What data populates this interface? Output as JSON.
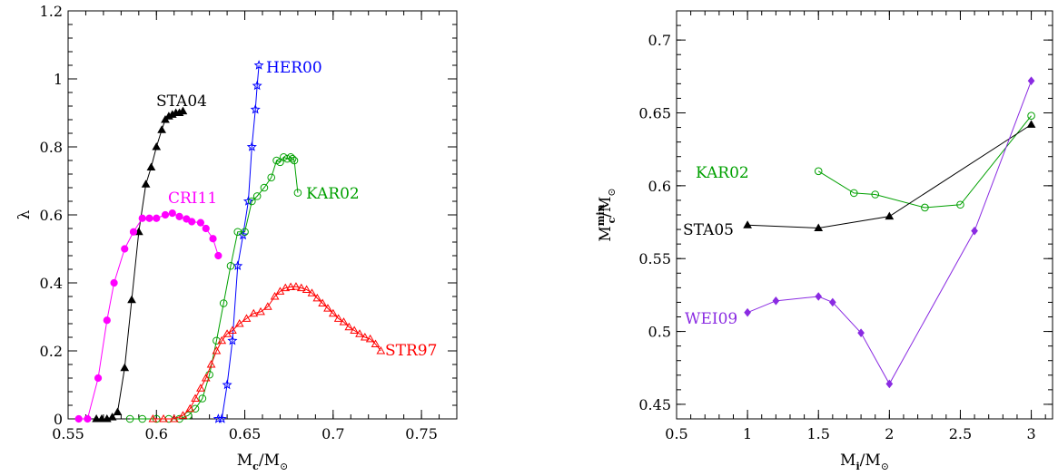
{
  "chart_data": [
    {
      "type": "line",
      "title": "",
      "xlabel": "M_c/M_⊙",
      "ylabel": "λ",
      "xlim": [
        0.55,
        0.77
      ],
      "ylim": [
        0,
        1.2
      ],
      "x_ticks": [
        "0.55",
        "0.6",
        "0.65",
        "0.7",
        "0.75"
      ],
      "y_ticks": [
        "0",
        "0.2",
        "0.4",
        "0.6",
        "0.8",
        "1",
        "1.2"
      ],
      "grid": false,
      "legend": "none (inline series labels)",
      "series": [
        {
          "name": "STA04",
          "color": "#000000",
          "marker": "filled-triangle",
          "x": [
            0.566,
            0.569,
            0.572,
            0.575,
            0.578,
            0.582,
            0.586,
            0.59,
            0.594,
            0.597,
            0.6,
            0.603,
            0.605,
            0.607,
            0.609,
            0.611,
            0.613,
            0.615
          ],
          "y": [
            0.0,
            0.0,
            0.0,
            0.005,
            0.02,
            0.15,
            0.35,
            0.55,
            0.69,
            0.74,
            0.8,
            0.85,
            0.88,
            0.89,
            0.895,
            0.9,
            0.9,
            0.905
          ]
        },
        {
          "name": "CRI11",
          "color": "#ff00ff",
          "marker": "filled-circle",
          "x": [
            0.556,
            0.561,
            0.567,
            0.572,
            0.576,
            0.582,
            0.587,
            0.592,
            0.596,
            0.6,
            0.605,
            0.609,
            0.613,
            0.617,
            0.62,
            0.625,
            0.628,
            0.632,
            0.635
          ],
          "y": [
            0.0,
            0.0,
            0.12,
            0.29,
            0.4,
            0.5,
            0.55,
            0.59,
            0.59,
            0.59,
            0.6,
            0.605,
            0.595,
            0.588,
            0.58,
            0.577,
            0.56,
            0.53,
            0.48
          ]
        },
        {
          "name": "HER00",
          "color": "#0000ff",
          "marker": "open-star",
          "x": [
            0.635,
            0.637,
            0.64,
            0.643,
            0.646,
            0.649,
            0.652,
            0.654,
            0.656,
            0.657,
            0.658
          ],
          "y": [
            0.0,
            0.0,
            0.1,
            0.23,
            0.45,
            0.54,
            0.64,
            0.8,
            0.91,
            0.98,
            1.04
          ]
        },
        {
          "name": "KAR02",
          "color": "#00a000",
          "marker": "open-circle",
          "x": [
            0.585,
            0.592,
            0.6,
            0.607,
            0.613,
            0.618,
            0.622,
            0.626,
            0.63,
            0.634,
            0.638,
            0.642,
            0.646,
            0.65,
            0.654,
            0.657,
            0.661,
            0.665,
            0.668,
            0.67,
            0.672,
            0.674,
            0.676,
            0.677,
            0.678,
            0.68
          ],
          "y": [
            0.0,
            0.0,
            0.0,
            0.0,
            0.0,
            0.01,
            0.03,
            0.06,
            0.13,
            0.23,
            0.34,
            0.45,
            0.55,
            0.55,
            0.64,
            0.655,
            0.68,
            0.71,
            0.76,
            0.755,
            0.77,
            0.765,
            0.77,
            0.765,
            0.76,
            0.665
          ]
        },
        {
          "name": "STR97",
          "color": "#ff0000",
          "marker": "open-triangle",
          "x": [
            0.598,
            0.604,
            0.61,
            0.615,
            0.619,
            0.622,
            0.625,
            0.628,
            0.631,
            0.634,
            0.637,
            0.64,
            0.643,
            0.647,
            0.651,
            0.655,
            0.659,
            0.663,
            0.667,
            0.67,
            0.673,
            0.676,
            0.679,
            0.682,
            0.685,
            0.688,
            0.691,
            0.694,
            0.697,
            0.7,
            0.703,
            0.706,
            0.709,
            0.712,
            0.715,
            0.718,
            0.721,
            0.724,
            0.727
          ],
          "y": [
            0.0,
            0.0,
            0.0,
            0.01,
            0.03,
            0.06,
            0.09,
            0.12,
            0.16,
            0.2,
            0.23,
            0.25,
            0.26,
            0.28,
            0.295,
            0.31,
            0.315,
            0.33,
            0.36,
            0.375,
            0.385,
            0.388,
            0.389,
            0.385,
            0.38,
            0.37,
            0.355,
            0.34,
            0.325,
            0.31,
            0.295,
            0.285,
            0.27,
            0.26,
            0.25,
            0.24,
            0.235,
            0.22,
            0.2
          ]
        }
      ],
      "labels": [
        {
          "text": "STA04",
          "color": "#000000"
        },
        {
          "text": "CRI11",
          "color": "#ff00ff"
        },
        {
          "text": "HER00",
          "color": "#0000ff"
        },
        {
          "text": "KAR02",
          "color": "#00a000"
        },
        {
          "text": "STR97",
          "color": "#ff0000"
        }
      ]
    },
    {
      "type": "line",
      "title": "",
      "xlabel": "M_i/M_⊙",
      "ylabel": "M_c^min/M_⊙",
      "xlim": [
        0.5,
        3.15
      ],
      "ylim": [
        0.44,
        0.72
      ],
      "x_ticks": [
        "0.5",
        "1",
        "1.5",
        "2",
        "2.5",
        "3"
      ],
      "y_ticks": [
        "0.45",
        "0.5",
        "0.55",
        "0.6",
        "0.65",
        "0.7"
      ],
      "grid": false,
      "legend": "none (inline series labels)",
      "series": [
        {
          "name": "KAR02",
          "color": "#00a000",
          "marker": "open-circle",
          "x": [
            1.5,
            1.75,
            1.9,
            2.25,
            2.5,
            3.0
          ],
          "y": [
            0.61,
            0.595,
            0.594,
            0.585,
            0.587,
            0.648
          ]
        },
        {
          "name": "STA05",
          "color": "#000000",
          "marker": "filled-triangle",
          "x": [
            1.0,
            1.5,
            2.0,
            3.0
          ],
          "y": [
            0.573,
            0.571,
            0.579,
            0.642
          ]
        },
        {
          "name": "WEI09",
          "color": "#8a2be2",
          "marker": "filled-diamond",
          "x": [
            1.0,
            1.2,
            1.5,
            1.6,
            1.8,
            2.0,
            2.6,
            3.0
          ],
          "y": [
            0.513,
            0.521,
            0.524,
            0.52,
            0.499,
            0.464,
            0.569,
            0.672
          ]
        }
      ],
      "labels": [
        {
          "text": "KAR02",
          "color": "#00a000"
        },
        {
          "text": "STA05",
          "color": "#000000"
        },
        {
          "text": "WEI09",
          "color": "#8a2be2"
        }
      ]
    }
  ]
}
